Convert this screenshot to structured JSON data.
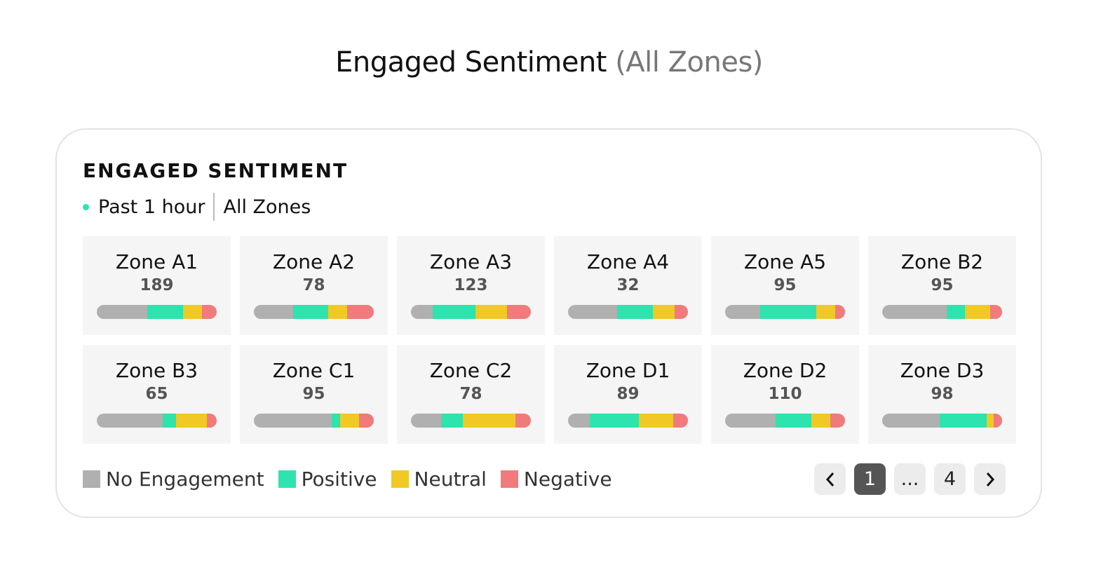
{
  "header": {
    "title": "Engaged Sentiment",
    "subtitle": "(All Zones)"
  },
  "card": {
    "heading": "ENGAGED SENTIMENT",
    "period": "Past 1 hour",
    "scope": "All Zones"
  },
  "colors": {
    "no_engagement": "#b0b0b0",
    "positive": "#2de3ae",
    "neutral": "#f0c924",
    "negative": "#f07a7c",
    "status_dot": "#2de3ae"
  },
  "zones": [
    {
      "name": "Zone A1",
      "count": "189",
      "shares": [
        42,
        30,
        16,
        12
      ]
    },
    {
      "name": "Zone A2",
      "count": "78",
      "shares": [
        33,
        29,
        16,
        22
      ]
    },
    {
      "name": "Zone A3",
      "count": "123",
      "shares": [
        18,
        36,
        26,
        20
      ]
    },
    {
      "name": "Zone A4",
      "count": "32",
      "shares": [
        41,
        30,
        18,
        11
      ]
    },
    {
      "name": "Zone A5",
      "count": "95",
      "shares": [
        29,
        47,
        16,
        8
      ]
    },
    {
      "name": "Zone B2",
      "count": "95",
      "shares": [
        54,
        15,
        21,
        10
      ]
    },
    {
      "name": "Zone B3",
      "count": "65",
      "shares": [
        55,
        11,
        26,
        8
      ]
    },
    {
      "name": "Zone C1",
      "count": "95",
      "shares": [
        65,
        7,
        16,
        12
      ]
    },
    {
      "name": "Zone C2",
      "count": "78",
      "shares": [
        25,
        18,
        44,
        13
      ]
    },
    {
      "name": "Zone D1",
      "count": "89",
      "shares": [
        18,
        41,
        29,
        12
      ]
    },
    {
      "name": "Zone D2",
      "count": "110",
      "shares": [
        42,
        30,
        16,
        12
      ]
    },
    {
      "name": "Zone D3",
      "count": "98",
      "shares": [
        48,
        39,
        6,
        7
      ]
    }
  ],
  "legend": [
    "No Engagement",
    "Positive",
    "Neutral",
    "Negative"
  ],
  "pagination": {
    "prev_icon": "chevron-left-icon",
    "pages": [
      "1",
      "...",
      "4"
    ],
    "current": "1",
    "next_icon": "chevron-right-icon"
  }
}
